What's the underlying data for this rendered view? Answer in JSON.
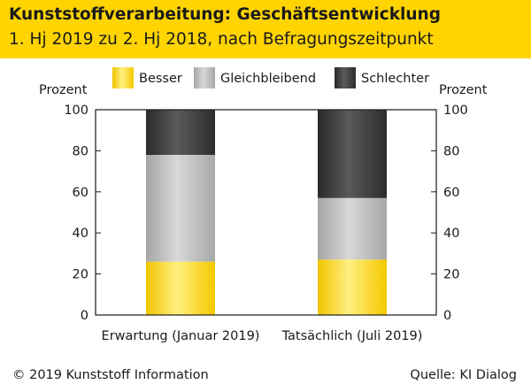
{
  "header": {
    "title": "Kunststoffverarbeitung: Geschäftsentwicklung",
    "subtitle": "1. Hj 2019 zu 2. Hj 2018, nach Befragungszeitpunkt"
  },
  "footer": {
    "copyright": "© 2019 Kunststoff Information",
    "source": "Quelle: KI Dialog"
  },
  "chart_data": {
    "type": "bar",
    "stacked": true,
    "categories": [
      "Erwartung (Januar 2019)",
      "Tatsächlich (Juli 2019)"
    ],
    "series": [
      {
        "name": "Besser",
        "values": [
          26,
          27
        ],
        "color": "#ffd400"
      },
      {
        "name": "Gleichbleibend",
        "values": [
          52,
          30
        ],
        "color": "#b4b4b4"
      },
      {
        "name": "Schlechter",
        "values": [
          22,
          43
        ],
        "color": "#3a3a3a"
      }
    ],
    "ylabel_left": "Prozent",
    "ylabel_right": "Prozent",
    "ylim": [
      0,
      100
    ],
    "yticks": [
      0,
      20,
      40,
      60,
      80,
      100
    ],
    "legend_position": "top"
  }
}
